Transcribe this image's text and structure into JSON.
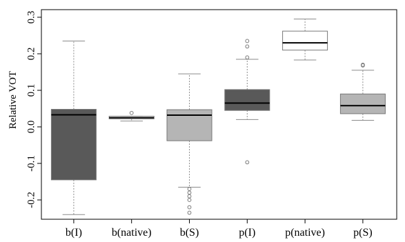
{
  "chart_data": {
    "type": "box",
    "title": "",
    "xlabel": "",
    "ylabel": "Relative VOT",
    "ylim": [
      -0.27,
      0.31
    ],
    "yticks": [
      -0.2,
      -0.1,
      0.0,
      0.1,
      0.2,
      0.3
    ],
    "ytick_labels": [
      "-0.2",
      "-0.1",
      "0.0",
      "0.1",
      "0.2",
      "0.3"
    ],
    "grid": false,
    "colors": {
      "dark": "#595959",
      "native": "#ffffff",
      "light": "#b5b5b5",
      "whisker": "#8a8a8a",
      "outlier": "#7a7a7a",
      "axis": "#000000"
    },
    "categories": [
      "b(I)",
      "b(native)",
      "b(S)",
      "p(I)",
      "p(native)",
      "p(S)"
    ],
    "boxes": [
      {
        "label": "b(I)",
        "fill": "#595959",
        "min": -0.24,
        "q1": -0.145,
        "median": 0.033,
        "q3": 0.048,
        "max": 0.235,
        "outliers": []
      },
      {
        "label": "b(native)",
        "fill": "#ffffff",
        "min": 0.016,
        "q1": 0.022,
        "median": 0.025,
        "q3": 0.029,
        "max": 0.029,
        "outliers": [
          0.038
        ]
      },
      {
        "label": "b(S)",
        "fill": "#b5b5b5",
        "min": -0.165,
        "q1": -0.038,
        "median": 0.032,
        "q3": 0.047,
        "max": 0.145,
        "outliers": [
          -0.17,
          -0.18,
          -0.19,
          -0.2,
          -0.22,
          -0.235
        ]
      },
      {
        "label": "p(I)",
        "fill": "#595959",
        "min": 0.02,
        "q1": 0.045,
        "median": 0.065,
        "q3": 0.102,
        "max": 0.185,
        "outliers": [
          -0.097,
          0.19,
          0.22,
          0.235
        ]
      },
      {
        "label": "p(native)",
        "fill": "#ffffff",
        "min": 0.183,
        "q1": 0.21,
        "median": 0.23,
        "q3": 0.262,
        "max": 0.295,
        "outliers": []
      },
      {
        "label": "p(S)",
        "fill": "#b5b5b5",
        "min": 0.018,
        "q1": 0.036,
        "median": 0.058,
        "q3": 0.09,
        "max": 0.155,
        "outliers": [
          0.17,
          0.168
        ]
      }
    ]
  }
}
